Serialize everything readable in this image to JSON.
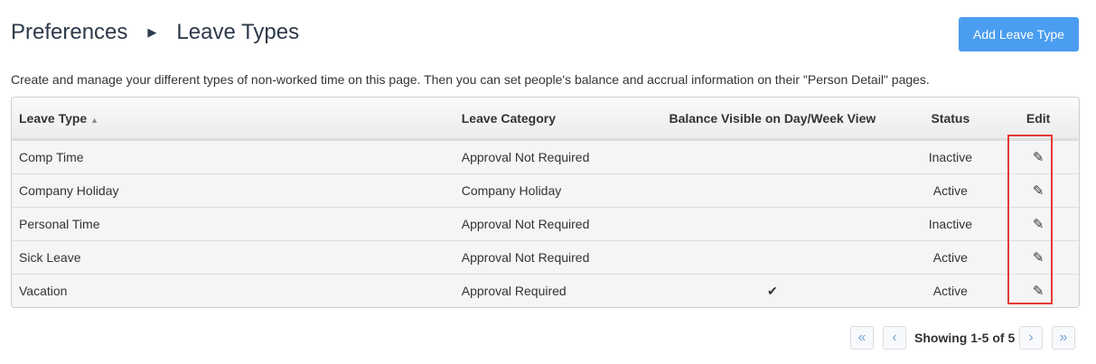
{
  "breadcrumb": {
    "parent": "Preferences",
    "current": "Leave Types"
  },
  "add_button": "Add Leave Type",
  "description": "Create and manage your different types of non-worked time on this page. Then you can set people's balance and accrual information on their \"Person Detail\" pages.",
  "table": {
    "columns": [
      "Leave Type",
      "Leave Category",
      "Balance Visible on Day/Week View",
      "Status",
      "Edit"
    ],
    "sort": {
      "column": "Leave Type",
      "direction": "ascending"
    },
    "rows": [
      {
        "name": "Comp Time",
        "category": "Approval Not Required",
        "balance_visible": "",
        "status": "Inactive"
      },
      {
        "name": "Company Holiday",
        "category": "Company Holiday",
        "balance_visible": "",
        "status": "Active"
      },
      {
        "name": "Personal Time",
        "category": "Approval Not Required",
        "balance_visible": "",
        "status": "Inactive"
      },
      {
        "name": "Sick Leave",
        "category": "Approval Not Required",
        "balance_visible": "",
        "status": "Active"
      },
      {
        "name": "Vacation",
        "category": "Approval Required",
        "balance_visible": "✔",
        "status": "Active"
      }
    ]
  },
  "pager": {
    "text": "Showing 1-5 of 5",
    "first": "«",
    "prev": "‹",
    "next": "›",
    "last": "»"
  },
  "colors": {
    "accent": "#4a9df0",
    "highlight": "#e53935"
  }
}
